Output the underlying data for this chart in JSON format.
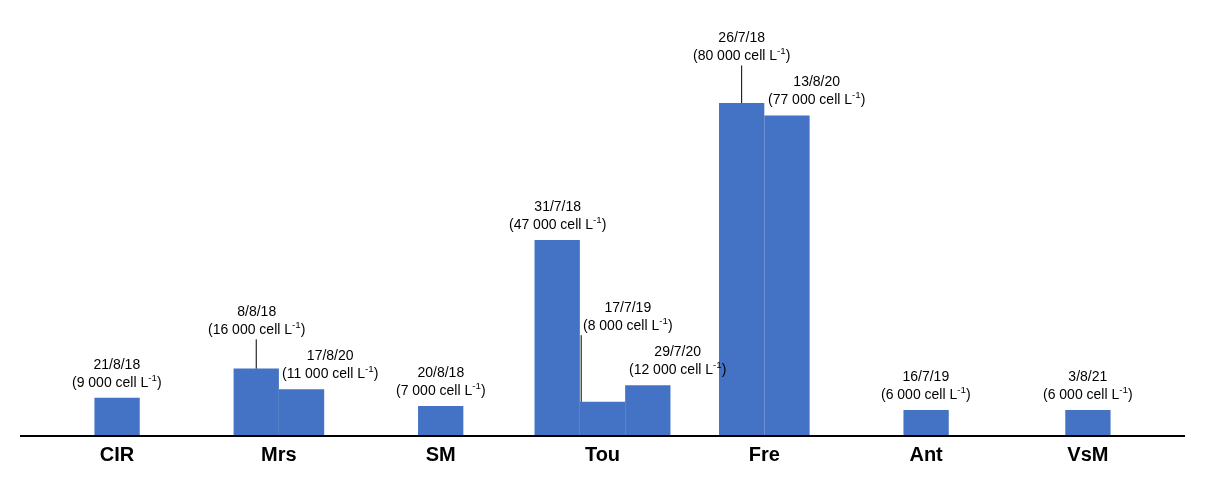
{
  "chart_data": {
    "type": "bar",
    "categories": [
      "CIR",
      "Mrs",
      "SM",
      "Tou",
      "Fre",
      "Ant",
      "VsM"
    ],
    "series": [
      {
        "color": "#4472c4",
        "values": [
          9000,
          16000,
          7000,
          47000,
          80000,
          6000,
          6000
        ],
        "value_labels": [
          "21/8/18\n(9 000 cell L$^{-1}$)",
          "8/8/18\n(16 000 cell L$^{-1}$)",
          "20/8/18\n(7 000 cell L$^{-1}$)",
          "31/7/18\n(47 000 cell L$^{-1}$)",
          "26/7/18\n(80 000 cell L$^{-1}$)",
          "16/7/19\n(6 000 cell L$^{-1}$)",
          "3/8/21\n(6 000 cell L$^{-1}$)"
        ]
      },
      {
        "color": "#4472c4",
        "values": [
          null,
          11000,
          null,
          8000,
          77000,
          null,
          null
        ],
        "value_labels": [
          null,
          "17/8/20\n(11 000 cell L$^{-1}$)",
          null,
          "17/7/19\n(8 000 cell L$^{-1}$)",
          "13/8/20\n(77 000 cell L$^{-1}$)",
          null,
          null
        ]
      },
      {
        "color": "#4472c4",
        "values": [
          null,
          null,
          null,
          12000,
          null,
          null,
          null
        ],
        "value_labels": [
          null,
          null,
          null,
          "29/7/20\n(12 000 cell L$^{-1}$)",
          null,
          null,
          null
        ]
      }
    ]
  }
}
